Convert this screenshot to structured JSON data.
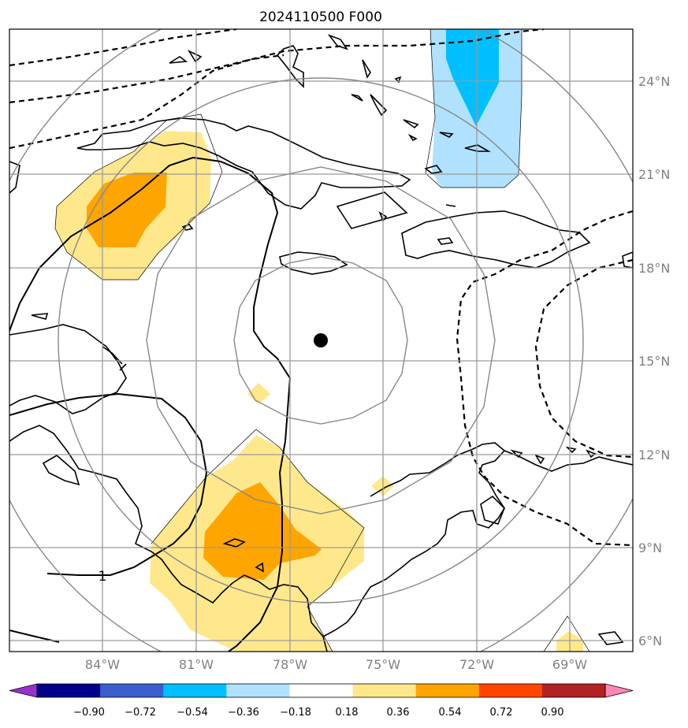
{
  "title": "2024110500 F000",
  "map": {
    "lon_ticks": [
      "84°W",
      "81°W",
      "78°W",
      "75°W",
      "72°W",
      "69°W"
    ],
    "lat_ticks": [
      "24°N",
      "21°N",
      "18°N",
      "15°N",
      "12°N",
      "9°N",
      "6°N"
    ],
    "contour_label": "1",
    "center_marker": {
      "lon": -77.0,
      "lat": 15.7,
      "shape": "filled circle"
    },
    "range_rings": "concentric gray rings around center marker"
  },
  "colorbar": {
    "ticks": [
      "−0.90",
      "−0.72",
      "−0.54",
      "−0.36",
      "−0.18",
      "0.18",
      "0.36",
      "0.54",
      "0.72",
      "0.90"
    ],
    "colors": [
      "#9932cc",
      "#00008b",
      "#3a5fcd",
      "#00bfff",
      "#b0e2ff",
      "#ffffff",
      "#ffe88c",
      "#ffa500",
      "#ff4500",
      "#b22222",
      "#ff86b4"
    ],
    "extend": "both"
  },
  "colors": {
    "grid": "#9a9a9a",
    "ring": "#888888",
    "tick_text": "#808080"
  }
}
